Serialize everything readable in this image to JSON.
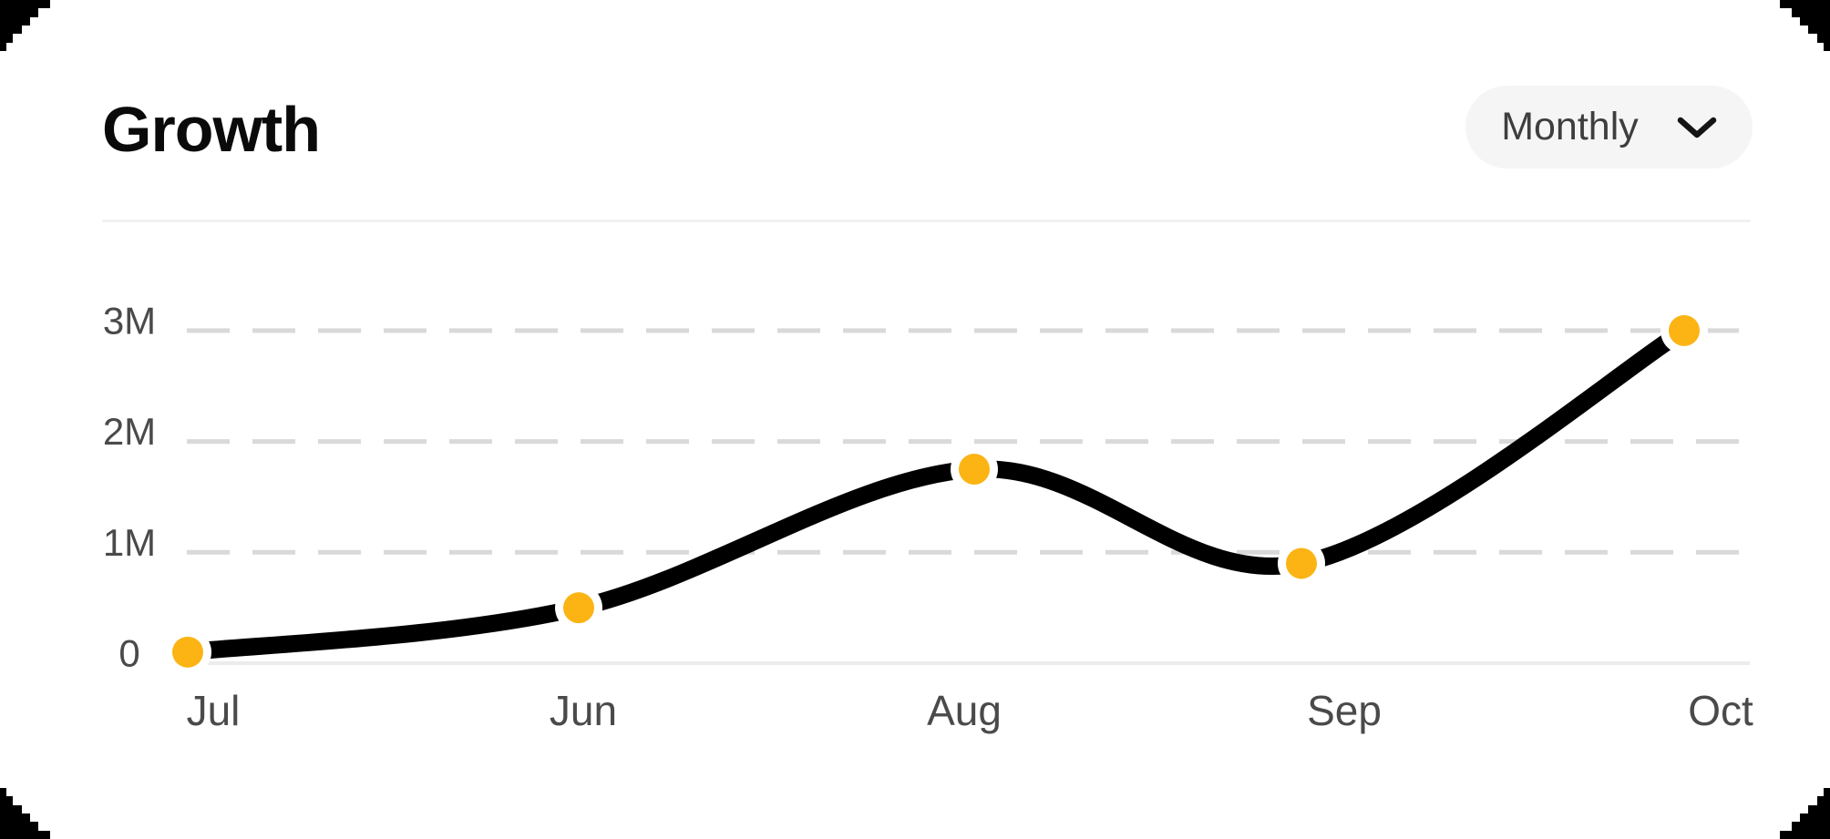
{
  "page": {
    "background_color": "#000000",
    "card_color": "#ffffff"
  },
  "header": {
    "title": "Growth",
    "period_selector": {
      "label": "Monthly",
      "icon": "chevron-down"
    }
  },
  "chart_data": {
    "type": "line",
    "title": "Growth",
    "categories": [
      "Jul",
      "Jun",
      "Aug",
      "Sep",
      "Oct"
    ],
    "series": [
      {
        "name": "Growth",
        "values": [
          0.1,
          0.5,
          1.75,
          0.9,
          3.0
        ]
      }
    ],
    "unit": "M",
    "y_ticks": [
      {
        "label": "3M",
        "value": 3
      },
      {
        "label": "2M",
        "value": 2
      },
      {
        "label": "1M",
        "value": 1
      },
      {
        "label": "0",
        "value": 0
      }
    ],
    "ylim": [
      0,
      3.2
    ],
    "grid": "dashed-horizontal",
    "legend": "none",
    "colors": {
      "line": "#000000",
      "point": "#FBB414",
      "point_halo": "#ffffff",
      "grid_dash": "#d9d9d9",
      "baseline": "#ececec",
      "tick_label": "#4a4a4a"
    }
  }
}
